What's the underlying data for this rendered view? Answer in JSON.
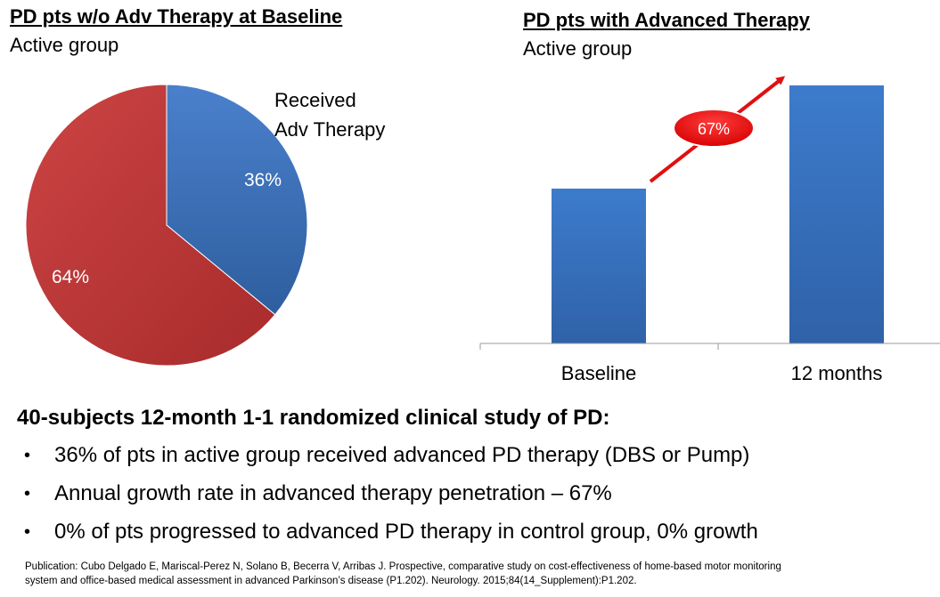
{
  "left_panel": {
    "title": "PD pts w/o Adv Therapy at Baseline",
    "subtitle": "Active group"
  },
  "right_panel": {
    "title": "PD pts with Advanced Therapy",
    "subtitle": "Active group"
  },
  "chart_data": [
    {
      "type": "pie",
      "labels": [
        "Received Adv Therapy",
        ""
      ],
      "values": [
        36,
        64
      ],
      "data_labels": [
        "36%",
        "64%"
      ],
      "colors": [
        "#3c72c2",
        "#c23a3a"
      ]
    },
    {
      "type": "bar",
      "categories": [
        "Baseline",
        "12 months"
      ],
      "values": [
        0.6,
        1.0
      ],
      "color": "#3a78c8",
      "annotation": {
        "text": "67%",
        "color": "#e01010"
      }
    }
  ],
  "summary": {
    "heading": "40-subjects 12-month 1-1 randomized clinical study of PD:",
    "bullets": [
      "36% of pts in active group received advanced PD therapy (DBS or Pump)",
      "Annual growth rate in advanced therapy penetration – 67%",
      "0% of pts progressed to advanced PD therapy in control group, 0% growth"
    ]
  },
  "citation": {
    "line1": "Publication: Cubo Delgado E, Mariscal-Perez N, Solano B, Becerra V, Arribas J. Prospective, comparative study on cost-effectiveness of home-based motor monitoring",
    "line2": "system and office-based medical assessment in advanced Parkinson’s disease (P1.202). Neurology. 2015;84(14_Supplement):P1.202."
  }
}
